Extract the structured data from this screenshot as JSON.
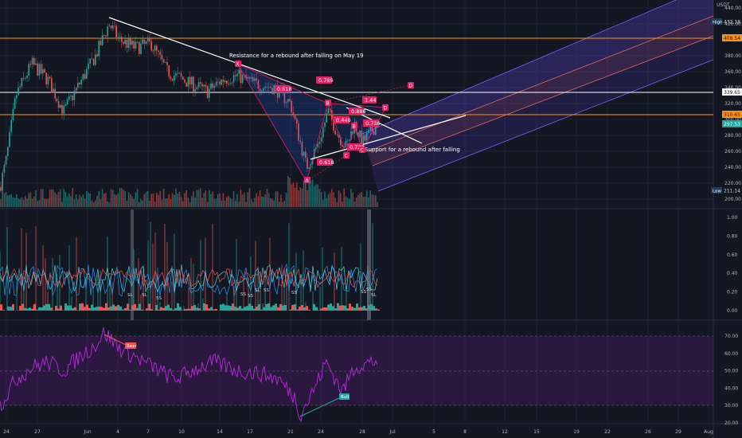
{
  "header": {
    "currency": "USDT"
  },
  "price_axis": {
    "ticks": [
      "440.00",
      "420.00",
      "400.00",
      "380.00",
      "360.00",
      "340.00",
      "320.00",
      "300.00",
      "280.00",
      "260.00",
      "240.00",
      "220.00",
      "200.00"
    ],
    "tick_values": [
      440,
      420,
      400,
      380,
      360,
      340,
      320,
      300,
      280,
      260,
      240,
      220,
      200
    ],
    "high_label": "High",
    "high_value": "432.18",
    "low_label": "Low",
    "low_value": "211.14",
    "resistance_1": "408.54",
    "resistance_2": "339.65",
    "resistance_3": "310.65",
    "current_price": "297.53"
  },
  "osc_axis": {
    "ticks": [
      "1.00",
      "0.80",
      "0.60",
      "0.40",
      "0.20",
      "0.00"
    ],
    "tick_values": [
      1,
      0.8,
      0.6,
      0.4,
      0.2,
      0
    ]
  },
  "rsi_axis": {
    "ticks": [
      "70.00",
      "60.00",
      "50.00",
      "40.00",
      "30.00",
      "20.00"
    ],
    "tick_values": [
      70,
      60,
      50,
      40,
      30,
      20
    ]
  },
  "time_axis": {
    "ticks": [
      "24",
      "27",
      "Jun",
      "4",
      "7",
      "10",
      "14",
      "17",
      "21",
      "24",
      "28",
      "Jul",
      "5",
      "8",
      "12",
      "15",
      "19",
      "22",
      "26",
      "29",
      "Aug"
    ]
  },
  "annotations": {
    "resistance_text": "Resistance for a rebound after falling on May 19",
    "support_text": "Support for a rebound after falling",
    "fib_0786": "0.786",
    "fib_0618_top": "0.618",
    "fib_0618_bottom": "0.618",
    "fib_144": "1.44",
    "fib_0886": "0.886",
    "fib_0446": "0.446",
    "fib_0736": "0.736",
    "fib_0730": "0.730",
    "pt_X": "X",
    "pt_A": "A",
    "pt_B1": "B",
    "pt_B2": "B",
    "pt_C1": "C",
    "pt_C2": "C",
    "pt_D1": "D",
    "pt_D2": "D"
  },
  "osc_labels": {
    "sl": "SL",
    "ss": "SS"
  },
  "rsi_labels": {
    "bear": "Bear",
    "bull": "Bull"
  },
  "colors": {
    "background": "#131722",
    "up": "#26a69a",
    "down": "#ef5350",
    "orange_line": "#f7931a",
    "harmonic": "#e91e63",
    "rsi": "#b027d4",
    "channel": "#7b61ff"
  }
}
